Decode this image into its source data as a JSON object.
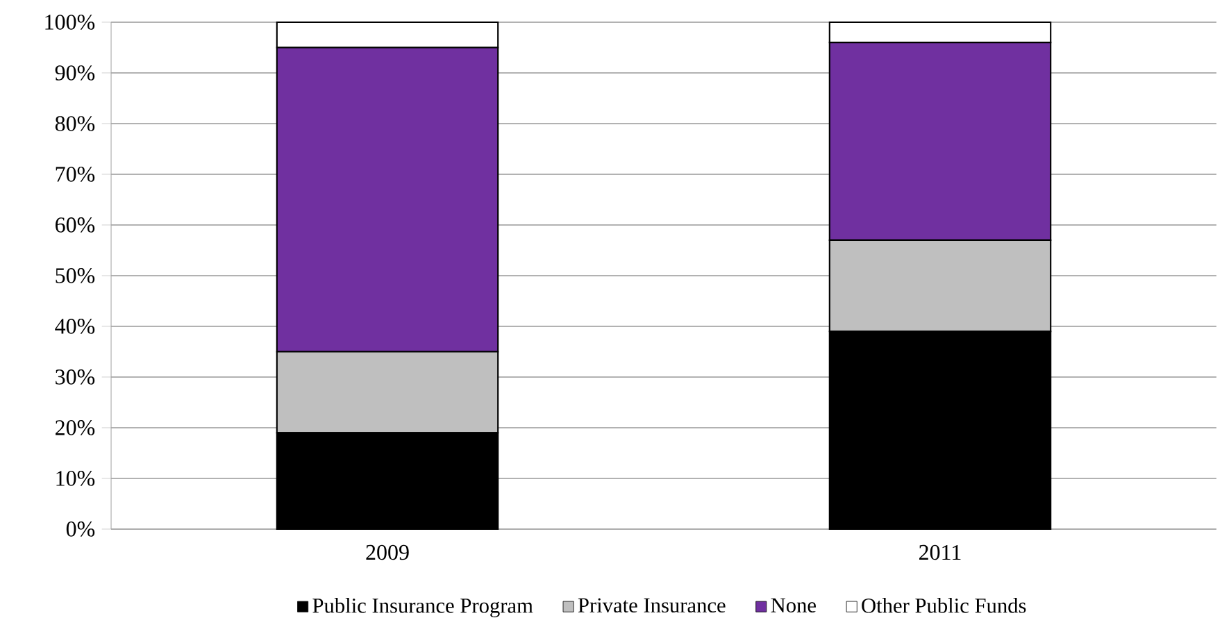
{
  "chart_data": {
    "type": "bar",
    "stacked": true,
    "categories": [
      "2009",
      "2011"
    ],
    "series": [
      {
        "name": "Public Insurance Program",
        "color": "#000000",
        "values": [
          19,
          39
        ]
      },
      {
        "name": "Private Insurance",
        "color": "#bfbfbf",
        "values": [
          16,
          18
        ]
      },
      {
        "name": "None",
        "color": "#7030a0",
        "values": [
          60,
          39
        ]
      },
      {
        "name": "Other Public Funds",
        "color": "#ffffff",
        "values": [
          5,
          4
        ]
      }
    ],
    "ylim": [
      0,
      100
    ],
    "yticks": [
      {
        "value": 0,
        "label": "0%"
      },
      {
        "value": 10,
        "label": "10%"
      },
      {
        "value": 20,
        "label": "20%"
      },
      {
        "value": 30,
        "label": "30%"
      },
      {
        "value": 40,
        "label": "40%"
      },
      {
        "value": 50,
        "label": "50%"
      },
      {
        "value": 60,
        "label": "60%"
      },
      {
        "value": 70,
        "label": "70%"
      },
      {
        "value": 80,
        "label": "80%"
      },
      {
        "value": 90,
        "label": "90%"
      },
      {
        "value": 100,
        "label": "100%"
      }
    ],
    "grid": "y",
    "legend": "bottom"
  }
}
